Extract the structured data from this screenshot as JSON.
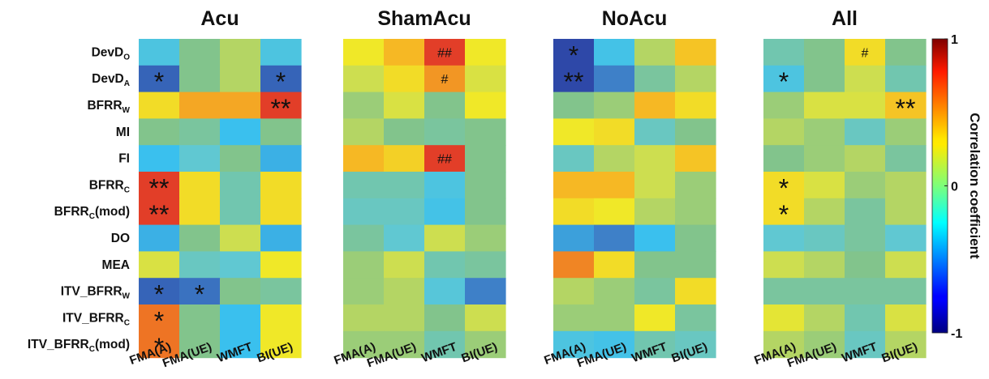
{
  "chart_data": {
    "type": "heatmap",
    "panels": [
      {
        "title": "Acu",
        "values": [
          [
            -0.3,
            0.0,
            0.1,
            -0.3
          ],
          [
            -0.7,
            0.0,
            0.1,
            -0.7
          ],
          [
            0.35,
            0.55,
            0.55,
            0.85
          ],
          [
            0.0,
            -0.05,
            -0.4,
            0.0
          ],
          [
            -0.4,
            -0.2,
            0.0,
            -0.45
          ],
          [
            0.85,
            0.35,
            -0.1,
            0.35
          ],
          [
            0.85,
            0.35,
            -0.1,
            0.35
          ],
          [
            -0.45,
            0.0,
            0.15,
            -0.45
          ],
          [
            0.2,
            -0.15,
            -0.2,
            0.3
          ],
          [
            -0.7,
            -0.65,
            0.0,
            -0.05
          ],
          [
            0.7,
            0.0,
            -0.4,
            0.3
          ],
          [
            0.7,
            0.0,
            -0.4,
            0.3
          ]
        ],
        "marks": [
          [
            "",
            "",
            "",
            ""
          ],
          [
            "*",
            "",
            "",
            "*"
          ],
          [
            "",
            "",
            "",
            "**"
          ],
          [
            "",
            "",
            "",
            ""
          ],
          [
            "",
            "",
            "",
            ""
          ],
          [
            "**",
            "",
            "",
            ""
          ],
          [
            "**",
            "",
            "",
            ""
          ],
          [
            "",
            "",
            "",
            ""
          ],
          [
            "",
            "",
            "",
            ""
          ],
          [
            "*",
            "*",
            "",
            ""
          ],
          [
            "*",
            "",
            "",
            ""
          ],
          [
            "*",
            "",
            "",
            ""
          ]
        ]
      },
      {
        "title": "ShamAcu",
        "values": [
          [
            0.3,
            0.5,
            0.85,
            0.3
          ],
          [
            0.15,
            0.35,
            0.6,
            0.2
          ],
          [
            0.05,
            0.2,
            0.0,
            0.3
          ],
          [
            0.1,
            0.0,
            -0.05,
            0.0
          ],
          [
            0.5,
            0.4,
            0.85,
            0.0
          ],
          [
            -0.1,
            -0.1,
            -0.3,
            0.0
          ],
          [
            -0.15,
            -0.15,
            -0.35,
            0.0
          ],
          [
            -0.05,
            -0.2,
            0.15,
            0.05
          ],
          [
            0.05,
            0.15,
            -0.1,
            -0.05
          ],
          [
            0.05,
            0.1,
            -0.25,
            -0.6
          ],
          [
            0.1,
            0.1,
            0.0,
            0.15
          ],
          [
            0.05,
            0.05,
            -0.1,
            0.05
          ]
        ],
        "marks": [
          [
            "",
            "",
            "##",
            ""
          ],
          [
            "",
            "",
            "#",
            ""
          ],
          [
            "",
            "",
            "",
            ""
          ],
          [
            "",
            "",
            "",
            ""
          ],
          [
            "",
            "",
            "##",
            ""
          ],
          [
            "",
            "",
            "",
            ""
          ],
          [
            "",
            "",
            "",
            ""
          ],
          [
            "",
            "",
            "",
            ""
          ],
          [
            "",
            "",
            "",
            ""
          ],
          [
            "",
            "",
            "",
            ""
          ],
          [
            "",
            "",
            "",
            ""
          ],
          [
            "",
            "",
            "",
            ""
          ]
        ]
      },
      {
        "title": "NoAcu",
        "values": [
          [
            -0.8,
            -0.35,
            0.1,
            0.45
          ],
          [
            -0.8,
            -0.6,
            -0.05,
            0.1
          ],
          [
            0.0,
            0.05,
            0.5,
            0.35
          ],
          [
            0.3,
            0.35,
            -0.15,
            0.0
          ],
          [
            -0.15,
            0.1,
            0.15,
            0.45
          ],
          [
            0.5,
            0.5,
            0.15,
            0.05
          ],
          [
            0.35,
            0.3,
            0.1,
            0.05
          ],
          [
            -0.5,
            -0.6,
            -0.4,
            0.0
          ],
          [
            0.65,
            0.35,
            0.0,
            0.0
          ],
          [
            0.1,
            0.05,
            -0.05,
            0.35
          ],
          [
            0.05,
            0.05,
            0.3,
            -0.05
          ],
          [
            -0.3,
            -0.35,
            -0.1,
            -0.15
          ]
        ],
        "marks": [
          [
            "*",
            "",
            "",
            ""
          ],
          [
            "**",
            "",
            "",
            ""
          ],
          [
            "",
            "",
            "",
            ""
          ],
          [
            "",
            "",
            "",
            ""
          ],
          [
            "",
            "",
            "",
            ""
          ],
          [
            "",
            "",
            "",
            ""
          ],
          [
            "",
            "",
            "",
            ""
          ],
          [
            "",
            "",
            "",
            ""
          ],
          [
            "",
            "",
            "",
            ""
          ],
          [
            "",
            "",
            "",
            ""
          ],
          [
            "",
            "",
            "",
            ""
          ],
          [
            "",
            "",
            "",
            ""
          ]
        ]
      },
      {
        "title": "All",
        "values": [
          [
            -0.1,
            0.0,
            0.35,
            0.0
          ],
          [
            -0.3,
            0.0,
            0.15,
            -0.1
          ],
          [
            0.05,
            0.2,
            0.2,
            0.45
          ],
          [
            0.1,
            0.05,
            -0.15,
            0.05
          ],
          [
            0.0,
            0.05,
            0.1,
            -0.05
          ],
          [
            0.35,
            0.2,
            0.05,
            0.1
          ],
          [
            0.35,
            0.1,
            -0.05,
            0.1
          ],
          [
            -0.2,
            -0.15,
            -0.05,
            -0.2
          ],
          [
            0.15,
            0.1,
            0.0,
            0.15
          ],
          [
            -0.05,
            -0.05,
            -0.05,
            -0.05
          ],
          [
            0.25,
            0.1,
            -0.1,
            0.2
          ],
          [
            0.1,
            0.05,
            -0.15,
            0.1
          ]
        ],
        "marks": [
          [
            "",
            "",
            "#",
            ""
          ],
          [
            "*",
            "",
            "",
            ""
          ],
          [
            "",
            "",
            "",
            "**"
          ],
          [
            "",
            "",
            "",
            ""
          ],
          [
            "",
            "",
            "",
            ""
          ],
          [
            "*",
            "",
            "",
            ""
          ],
          [
            "*",
            "",
            "",
            ""
          ],
          [
            "",
            "",
            "",
            ""
          ],
          [
            "",
            "",
            "",
            ""
          ],
          [
            "",
            "",
            "",
            ""
          ],
          [
            "",
            "",
            "",
            ""
          ],
          [
            "",
            "",
            "",
            ""
          ]
        ]
      }
    ],
    "rows": [
      {
        "main": "DevD",
        "sub": "O",
        "suffix": ""
      },
      {
        "main": "DevD",
        "sub": "A",
        "suffix": ""
      },
      {
        "main": "BFRR",
        "sub": "W",
        "suffix": ""
      },
      {
        "main": "MI",
        "sub": "",
        "suffix": ""
      },
      {
        "main": "FI",
        "sub": "",
        "suffix": ""
      },
      {
        "main": "BFRR",
        "sub": "C",
        "suffix": ""
      },
      {
        "main": "BFRR",
        "sub": "C",
        "suffix": "(mod)"
      },
      {
        "main": "DO",
        "sub": "",
        "suffix": ""
      },
      {
        "main": "MEA",
        "sub": "",
        "suffix": ""
      },
      {
        "main": "ITV_BFRR",
        "sub": "W",
        "suffix": ""
      },
      {
        "main": "ITV_BFRR",
        "sub": "C",
        "suffix": ""
      },
      {
        "main": "ITV_BFRR",
        "sub": "C",
        "suffix": "(mod)"
      }
    ],
    "columns": [
      "FMA(A)",
      "FMA(UE)",
      "WMFT",
      "BI(UE)"
    ],
    "colorbar": {
      "label": "Correlation coefficient",
      "min": -1,
      "max": 1,
      "ticks": [
        {
          "value": 1,
          "label": "1"
        },
        {
          "value": 0,
          "label": "0"
        },
        {
          "value": -1,
          "label": "-1"
        }
      ],
      "colormap": "jet"
    }
  }
}
